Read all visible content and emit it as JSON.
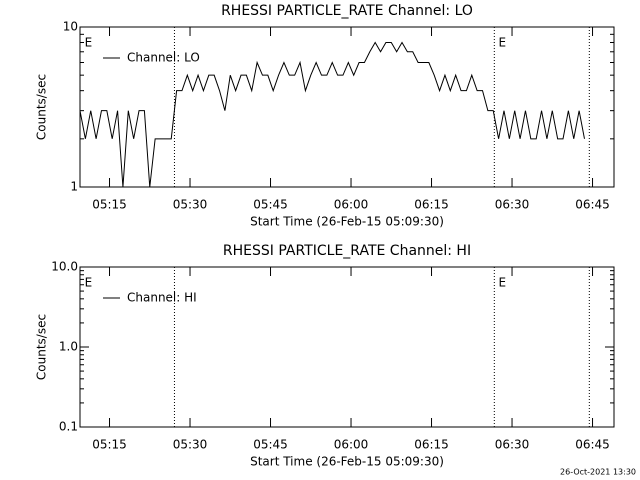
{
  "chart_data": [
    {
      "type": "line",
      "title": "RHESSI PARTICLE_RATE Channel: LO",
      "xlabel": "Start Time (26-Feb-15 05:09:30)",
      "ylabel": "Counts/sec",
      "log_y": true,
      "legend": "upper-left",
      "xlim": [
        0,
        99.5
      ],
      "xticks": [
        {
          "value": 5.5,
          "label": "05:15"
        },
        {
          "value": 20.5,
          "label": "05:30"
        },
        {
          "value": 35.5,
          "label": "05:45"
        },
        {
          "value": 50.5,
          "label": "06:00"
        },
        {
          "value": 65.5,
          "label": "06:15"
        },
        {
          "value": 80.5,
          "label": "06:30"
        },
        {
          "value": 95.5,
          "label": "06:45"
        }
      ],
      "ylim": [
        1,
        10
      ],
      "yticks": [
        1,
        10
      ],
      "vlines": [
        17.6,
        77.2,
        94.9
      ],
      "annotations": [
        {
          "text": "E",
          "x": 0.5
        },
        {
          "text": "E",
          "x": 77.6
        }
      ],
      "x": [
        0,
        1,
        2,
        3,
        4,
        5,
        6,
        7,
        8,
        9,
        10,
        11,
        12,
        13,
        14,
        15,
        16,
        17,
        18,
        19,
        20,
        21,
        22,
        23,
        24,
        25,
        26,
        27,
        28,
        29,
        30,
        31,
        32,
        33,
        34,
        35,
        36,
        37,
        38,
        39,
        40,
        41,
        42,
        43,
        44,
        45,
        46,
        47,
        48,
        49,
        50,
        51,
        52,
        53,
        54,
        55,
        56,
        57,
        58,
        59,
        60,
        61,
        62,
        63,
        64,
        65,
        66,
        67,
        68,
        69,
        70,
        71,
        72,
        73,
        74,
        75,
        76,
        77,
        78,
        79,
        80,
        81,
        82,
        83,
        84,
        85,
        86,
        87,
        88,
        89,
        90,
        91,
        92,
        93,
        94
      ],
      "series": [
        {
          "name": "Channel: LO",
          "color": "#000000",
          "values": [
            3,
            2,
            3,
            2,
            3,
            3,
            2,
            3,
            1,
            3,
            2,
            3,
            3,
            1,
            2,
            2,
            2,
            2,
            4,
            4,
            5,
            4,
            5,
            4,
            5,
            5,
            4,
            3,
            5,
            4,
            5,
            5,
            4,
            6,
            5,
            5,
            4,
            5,
            6,
            5,
            5,
            6,
            4,
            5,
            6,
            5,
            5,
            6,
            5,
            5,
            6,
            5,
            6,
            6,
            7,
            8,
            7,
            8,
            8,
            7,
            8,
            7,
            7,
            6,
            6,
            6,
            5,
            4,
            5,
            4,
            5,
            4,
            4,
            5,
            4,
            4,
            3,
            3,
            2,
            3,
            2,
            3,
            2,
            3,
            2,
            2,
            3,
            2,
            3,
            2,
            2,
            3,
            2,
            3,
            2
          ]
        }
      ]
    },
    {
      "type": "line",
      "title": "RHESSI PARTICLE_RATE Channel: HI",
      "xlabel": "Start Time (26-Feb-15 05:09:30)",
      "ylabel": "Counts/sec",
      "log_y": true,
      "legend": "upper-left",
      "xlim": [
        0,
        99.5
      ],
      "xticks": [
        {
          "value": 5.5,
          "label": "05:15"
        },
        {
          "value": 20.5,
          "label": "05:30"
        },
        {
          "value": 35.5,
          "label": "05:45"
        },
        {
          "value": 50.5,
          "label": "06:00"
        },
        {
          "value": 65.5,
          "label": "06:15"
        },
        {
          "value": 80.5,
          "label": "06:30"
        },
        {
          "value": 95.5,
          "label": "06:45"
        }
      ],
      "ylim": [
        0.1,
        10
      ],
      "yticks": [
        {
          "value": 0.1,
          "label": "0.1"
        },
        {
          "value": 1,
          "label": "1.0"
        },
        {
          "value": 10,
          "label": "10.0"
        }
      ],
      "vlines": [
        17.6,
        77.2,
        94.9
      ],
      "annotations": [
        {
          "text": "E",
          "x": 0.5
        },
        {
          "text": "E",
          "x": 77.6
        }
      ],
      "x": [],
      "series": [
        {
          "name": "Channel: HI",
          "color": "#000000",
          "values": []
        }
      ]
    }
  ],
  "footer": "26-Oct-2021 13:30"
}
